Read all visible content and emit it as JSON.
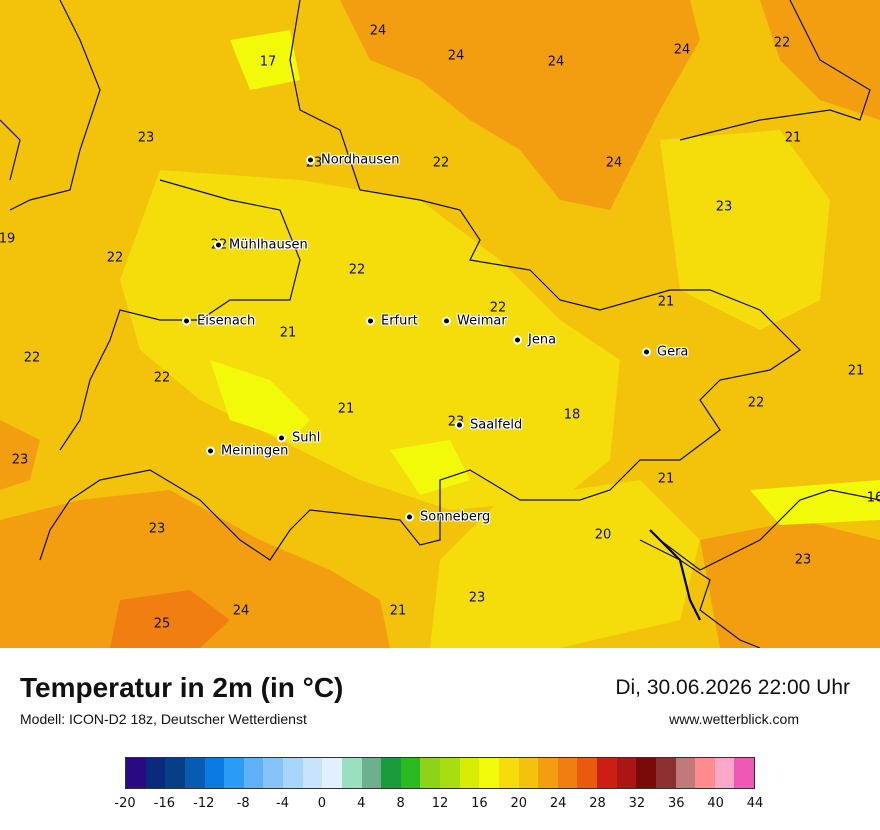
{
  "header": {
    "title": "Temperatur in 2m (in °C)",
    "subtitle": "Modell: ICON-D2 18z, Deutscher Wetterdienst",
    "datetime": "Di, 30.06.2026 22:00 Uhr",
    "website": "www.wetterblick.com"
  },
  "cities": [
    {
      "name": "Nordhausen"
    },
    {
      "name": "Mühlhausen"
    },
    {
      "name": "Eisenach"
    },
    {
      "name": "Erfurt"
    },
    {
      "name": "Weimar"
    },
    {
      "name": "Jena"
    },
    {
      "name": "Gera"
    },
    {
      "name": "Suhl"
    },
    {
      "name": "Meiningen"
    },
    {
      "name": "Saalfeld"
    },
    {
      "name": "Sonneberg"
    }
  ],
  "temperature_values": [
    "24",
    "24",
    "24",
    "24",
    "22",
    "17",
    "23",
    "21",
    "24",
    "22",
    "23",
    "23",
    "19",
    "22",
    "22",
    "22",
    "21",
    "21",
    "22",
    "21",
    "22",
    "22",
    "21",
    "22",
    "18",
    "23",
    "23",
    "21",
    "20",
    "23",
    "24",
    "23",
    "25",
    "21",
    "21",
    "23",
    "16"
  ],
  "legend": {
    "colors": [
      "#2a0a83",
      "#0a2a7e",
      "#073f86",
      "#075bb0",
      "#0a7ae2",
      "#2a9cf7",
      "#5eb1f7",
      "#85c3f8",
      "#a8d5fb",
      "#c8e4fc",
      "#e0f0ff",
      "#98e0c0",
      "#6cb08e",
      "#1a9a3a",
      "#2aba20",
      "#8fd21a",
      "#a6de10",
      "#d6ee05",
      "#f2fa0a",
      "#f4dd0a",
      "#f2c30a",
      "#f29e10",
      "#f07e10",
      "#ea5a0e",
      "#cc1e12",
      "#aa1616",
      "#7a0a0a",
      "#8a3030",
      "#c07a7a",
      "#ff8c8c",
      "#ffa7c8",
      "#ee59b8"
    ],
    "ticks": [
      "-20",
      "-16",
      "-12",
      "-8",
      "-4",
      "0",
      "4",
      "8",
      "12",
      "16",
      "20",
      "24",
      "28",
      "32",
      "36",
      "40",
      "44"
    ]
  }
}
